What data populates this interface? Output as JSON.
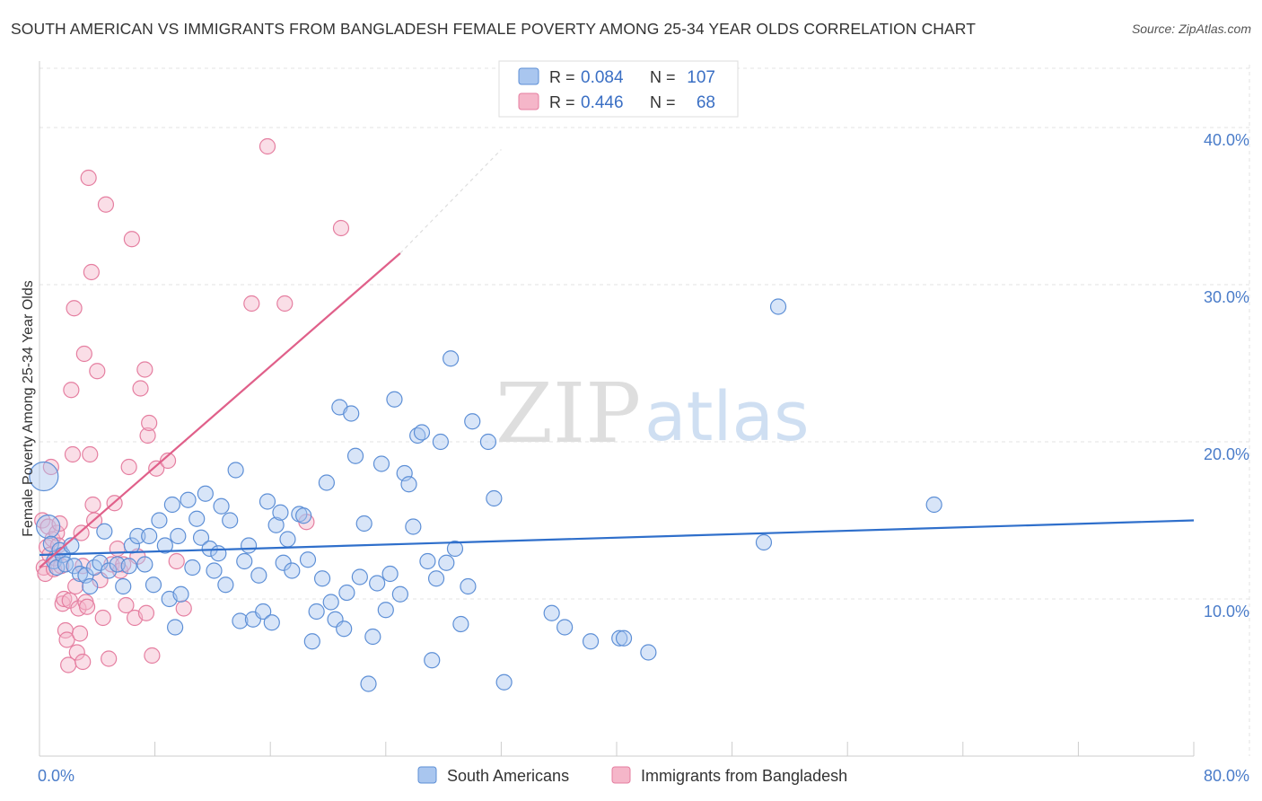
{
  "header": {
    "title": "SOUTH AMERICAN VS IMMIGRANTS FROM BANGLADESH FEMALE POVERTY AMONG 25-34 YEAR OLDS CORRELATION CHART",
    "source": "Source: ZipAtlas.com"
  },
  "watermark": {
    "zip": "ZIP",
    "atlas": "atlas"
  },
  "colors": {
    "blue_fill": "#a9c6ef",
    "blue_stroke": "#5d8fd6",
    "blue_line": "#2f6fcb",
    "pink_fill": "#f5b6c9",
    "pink_stroke": "#e57ea0",
    "pink_line": "#e0608a",
    "grid": "#e3e3e3",
    "tick_text": "#4a7cc9"
  },
  "legend": {
    "rows": [
      {
        "r_label": "R =",
        "r_value": "0.084",
        "n_label": "N =",
        "n_value": "107"
      },
      {
        "r_label": "R =",
        "r_value": "0.446",
        "n_label": "N =",
        "n_value": "68"
      }
    ]
  },
  "chart_data": {
    "type": "scatter",
    "title": "SOUTH AMERICAN VS IMMIGRANTS FROM BANGLADESH FEMALE POVERTY AMONG 25-34 YEAR OLDS CORRELATION CHART",
    "xlabel": "",
    "ylabel": "Female Poverty Among 25-34 Year Olds",
    "xlim": [
      0,
      80
    ],
    "ylim": [
      0,
      44
    ],
    "x_tick_labels": {
      "min": "0.0%",
      "max": "80.0%"
    },
    "y_ticks": [
      10,
      20,
      30,
      40
    ],
    "y_tick_labels": [
      "10.0%",
      "20.0%",
      "30.0%",
      "40.0%"
    ],
    "series": [
      {
        "name": "South Americans",
        "r": 0.084,
        "n": 107,
        "trend": {
          "x0": 0,
          "y0": 12.8,
          "x1": 80,
          "y1": 15.0
        },
        "points": [
          [
            0.3,
            17.8
          ],
          [
            0.6,
            14.6
          ],
          [
            0.8,
            13.5
          ],
          [
            1.0,
            12.4
          ],
          [
            1.2,
            12.0
          ],
          [
            1.4,
            13.1
          ],
          [
            1.6,
            12.8
          ],
          [
            1.8,
            12.2
          ],
          [
            2.2,
            13.4
          ],
          [
            2.4,
            12.1
          ],
          [
            2.8,
            11.6
          ],
          [
            3.2,
            11.5
          ],
          [
            3.5,
            10.8
          ],
          [
            3.8,
            12.0
          ],
          [
            4.2,
            12.3
          ],
          [
            4.5,
            14.3
          ],
          [
            4.8,
            11.8
          ],
          [
            5.4,
            12.2
          ],
          [
            5.8,
            10.8
          ],
          [
            6.2,
            12.1
          ],
          [
            6.4,
            13.4
          ],
          [
            6.8,
            14.0
          ],
          [
            7.3,
            12.2
          ],
          [
            7.6,
            14.0
          ],
          [
            7.9,
            10.9
          ],
          [
            8.3,
            15.0
          ],
          [
            8.7,
            13.4
          ],
          [
            9.0,
            10.0
          ],
          [
            9.2,
            16.0
          ],
          [
            9.4,
            8.2
          ],
          [
            9.6,
            14.0
          ],
          [
            9.8,
            10.3
          ],
          [
            10.3,
            16.3
          ],
          [
            10.6,
            12.0
          ],
          [
            10.9,
            15.1
          ],
          [
            11.2,
            13.9
          ],
          [
            11.5,
            16.7
          ],
          [
            11.8,
            13.2
          ],
          [
            12.1,
            11.8
          ],
          [
            12.4,
            12.9
          ],
          [
            12.6,
            15.9
          ],
          [
            12.9,
            10.9
          ],
          [
            13.2,
            15.0
          ],
          [
            13.6,
            18.2
          ],
          [
            13.9,
            8.6
          ],
          [
            14.2,
            12.4
          ],
          [
            14.5,
            13.4
          ],
          [
            14.8,
            8.7
          ],
          [
            15.2,
            11.5
          ],
          [
            15.5,
            9.2
          ],
          [
            15.8,
            16.2
          ],
          [
            16.1,
            8.5
          ],
          [
            16.4,
            14.7
          ],
          [
            16.7,
            15.5
          ],
          [
            16.9,
            12.3
          ],
          [
            17.2,
            13.8
          ],
          [
            17.5,
            11.8
          ],
          [
            18.0,
            15.4
          ],
          [
            18.3,
            15.3
          ],
          [
            18.6,
            12.5
          ],
          [
            18.9,
            7.3
          ],
          [
            19.2,
            9.2
          ],
          [
            19.6,
            11.3
          ],
          [
            19.9,
            17.4
          ],
          [
            20.2,
            9.8
          ],
          [
            20.5,
            8.7
          ],
          [
            20.8,
            22.2
          ],
          [
            21.1,
            8.1
          ],
          [
            21.3,
            10.4
          ],
          [
            21.6,
            21.8
          ],
          [
            21.9,
            19.1
          ],
          [
            22.2,
            11.4
          ],
          [
            22.5,
            14.8
          ],
          [
            22.8,
            4.6
          ],
          [
            23.1,
            7.6
          ],
          [
            23.4,
            11.0
          ],
          [
            23.7,
            18.6
          ],
          [
            24.0,
            9.3
          ],
          [
            24.3,
            11.6
          ],
          [
            24.6,
            22.7
          ],
          [
            25.0,
            10.3
          ],
          [
            25.3,
            18.0
          ],
          [
            25.6,
            17.3
          ],
          [
            25.9,
            14.6
          ],
          [
            26.2,
            20.4
          ],
          [
            26.5,
            20.6
          ],
          [
            26.9,
            12.4
          ],
          [
            27.2,
            6.1
          ],
          [
            27.5,
            11.3
          ],
          [
            27.8,
            20.0
          ],
          [
            28.2,
            12.3
          ],
          [
            28.5,
            25.3
          ],
          [
            28.8,
            13.2
          ],
          [
            29.2,
            8.4
          ],
          [
            29.7,
            10.8
          ],
          [
            30.0,
            21.3
          ],
          [
            31.1,
            20.0
          ],
          [
            31.5,
            16.4
          ],
          [
            32.2,
            4.7
          ],
          [
            35.5,
            9.1
          ],
          [
            36.4,
            8.2
          ],
          [
            38.2,
            7.3
          ],
          [
            40.2,
            7.5
          ],
          [
            40.5,
            7.5
          ],
          [
            42.2,
            6.6
          ],
          [
            50.2,
            13.6
          ],
          [
            51.2,
            28.6
          ],
          [
            62.0,
            16.0
          ]
        ]
      },
      {
        "name": "Immigrants from Bangladesh",
        "r": 0.446,
        "n": 68,
        "trend": {
          "x0": 0,
          "y0": 12.0,
          "x1": 25,
          "y1": 32.0,
          "dash_x1": 32,
          "dash_y1": 38.6
        },
        "points": [
          [
            0.2,
            15.0
          ],
          [
            0.3,
            12.0
          ],
          [
            0.4,
            11.6
          ],
          [
            0.5,
            13.3
          ],
          [
            0.6,
            14.6
          ],
          [
            0.7,
            12.8
          ],
          [
            0.8,
            18.4
          ],
          [
            0.9,
            13.8
          ],
          [
            1.0,
            11.9
          ],
          [
            1.1,
            12.6
          ],
          [
            1.2,
            14.2
          ],
          [
            1.3,
            13.4
          ],
          [
            1.4,
            14.8
          ],
          [
            1.5,
            12.1
          ],
          [
            1.6,
            9.7
          ],
          [
            1.7,
            10.0
          ],
          [
            1.8,
            8.0
          ],
          [
            1.9,
            7.4
          ],
          [
            2.0,
            5.8
          ],
          [
            2.1,
            9.9
          ],
          [
            2.2,
            23.3
          ],
          [
            2.3,
            19.2
          ],
          [
            2.4,
            28.5
          ],
          [
            2.5,
            10.8
          ],
          [
            2.6,
            6.6
          ],
          [
            2.7,
            9.4
          ],
          [
            2.8,
            7.8
          ],
          [
            2.9,
            14.2
          ],
          [
            3.0,
            6.0
          ],
          [
            3.1,
            25.6
          ],
          [
            3.2,
            9.8
          ],
          [
            3.3,
            9.5
          ],
          [
            3.4,
            36.8
          ],
          [
            3.5,
            19.2
          ],
          [
            3.6,
            30.8
          ],
          [
            3.7,
            16.0
          ],
          [
            3.8,
            15.0
          ],
          [
            4.0,
            24.5
          ],
          [
            4.2,
            11.2
          ],
          [
            4.4,
            8.8
          ],
          [
            4.6,
            35.1
          ],
          [
            4.8,
            6.2
          ],
          [
            5.0,
            12.2
          ],
          [
            5.2,
            16.1
          ],
          [
            5.4,
            13.2
          ],
          [
            5.6,
            11.8
          ],
          [
            5.8,
            12.2
          ],
          [
            6.0,
            9.6
          ],
          [
            6.2,
            18.4
          ],
          [
            6.4,
            32.9
          ],
          [
            6.6,
            8.8
          ],
          [
            6.8,
            12.7
          ],
          [
            7.0,
            23.4
          ],
          [
            7.3,
            24.6
          ],
          [
            7.5,
            20.4
          ],
          [
            7.6,
            21.2
          ],
          [
            7.8,
            6.4
          ],
          [
            8.1,
            18.3
          ],
          [
            8.9,
            18.8
          ],
          [
            9.5,
            12.4
          ],
          [
            10.0,
            9.4
          ],
          [
            14.7,
            28.8
          ],
          [
            15.8,
            38.8
          ],
          [
            17.0,
            28.8
          ],
          [
            18.5,
            14.9
          ],
          [
            20.9,
            33.6
          ],
          [
            7.4,
            9.1
          ],
          [
            3.0,
            12.1
          ]
        ]
      }
    ],
    "legend_position": "top-center",
    "bottom_legend": [
      "South Americans",
      "Immigrants from Bangladesh"
    ]
  }
}
